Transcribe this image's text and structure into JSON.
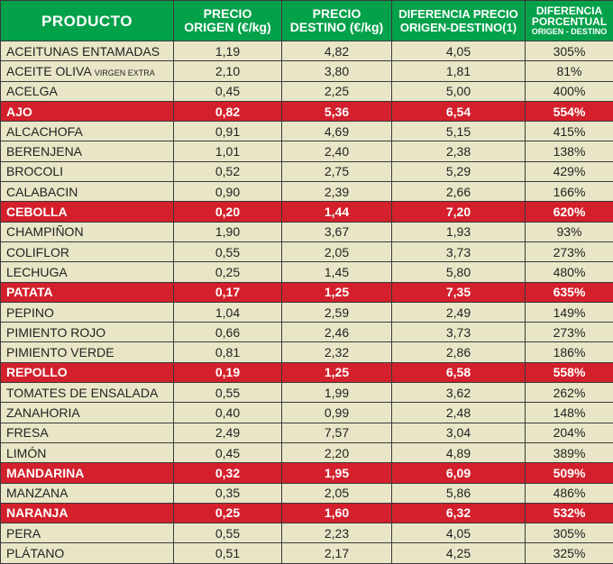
{
  "header": {
    "producto": "PRODUCTO",
    "precio_origen": [
      "PRECIO",
      "ORIGEN (€/kg)"
    ],
    "precio_destino": [
      "PRECIO",
      "DESTINO (€/kg)"
    ],
    "diferencia": [
      "DIFERENCIA PRECIO",
      "ORIGEN-DESTINO(1)"
    ],
    "porcentual": [
      "DIFERENCIA",
      "PORCENTUAL",
      "ORIGEN - DESTINO"
    ]
  },
  "colors": {
    "header_green": "#04a14b",
    "highlight_red": "#d3202c",
    "row_bg": "#e9e6c7"
  },
  "rows": [
    {
      "name": "ACEITUNAS ENTAMADAS",
      "origen": "1,19",
      "destino": "4,82",
      "diferencia": "4,05",
      "porcentaje": "305%",
      "highlight": false
    },
    {
      "name": "ACEITE OLIVA",
      "name_suffix": "VIRGEN EXTRA",
      "origen": "2,10",
      "destino": "3,80",
      "diferencia": "1,81",
      "porcentaje": "81%",
      "highlight": false
    },
    {
      "name": "ACELGA",
      "origen": "0,45",
      "destino": "2,25",
      "diferencia": "5,00",
      "porcentaje": "400%",
      "highlight": false
    },
    {
      "name": "AJO",
      "origen": "0,82",
      "destino": "5,36",
      "diferencia": "6,54",
      "porcentaje": "554%",
      "highlight": true
    },
    {
      "name": "ALCACHOFA",
      "origen": "0,91",
      "destino": "4,69",
      "diferencia": "5,15",
      "porcentaje": "415%",
      "highlight": false
    },
    {
      "name": "BERENJENA",
      "origen": "1,01",
      "destino": "2,40",
      "diferencia": "2,38",
      "porcentaje": "138%",
      "highlight": false
    },
    {
      "name": "BROCOLI",
      "origen": "0,52",
      "destino": "2,75",
      "diferencia": "5,29",
      "porcentaje": "429%",
      "highlight": false
    },
    {
      "name": "CALABACIN",
      "origen": "0,90",
      "destino": "2,39",
      "diferencia": "2,66",
      "porcentaje": "166%",
      "highlight": false
    },
    {
      "name": "CEBOLLA",
      "origen": "0,20",
      "destino": "1,44",
      "diferencia": "7,20",
      "porcentaje": "620%",
      "highlight": true
    },
    {
      "name": "CHAMPIÑON",
      "origen": "1,90",
      "destino": "3,67",
      "diferencia": "1,93",
      "porcentaje": "93%",
      "highlight": false
    },
    {
      "name": "COLIFLOR",
      "origen": "0,55",
      "destino": "2,05",
      "diferencia": "3,73",
      "porcentaje": "273%",
      "highlight": false
    },
    {
      "name": "LECHUGA",
      "origen": "0,25",
      "destino": "1,45",
      "diferencia": "5,80",
      "porcentaje": "480%",
      "highlight": false
    },
    {
      "name": "PATATA",
      "origen": "0,17",
      "destino": "1,25",
      "diferencia": "7,35",
      "porcentaje": "635%",
      "highlight": true
    },
    {
      "name": "PEPINO",
      "origen": "1,04",
      "destino": "2,59",
      "diferencia": "2,49",
      "porcentaje": "149%",
      "highlight": false
    },
    {
      "name": "PIMIENTO ROJO",
      "origen": "0,66",
      "destino": "2,46",
      "diferencia": "3,73",
      "porcentaje": "273%",
      "highlight": false
    },
    {
      "name": "PIMIENTO VERDE",
      "origen": "0,81",
      "destino": "2,32",
      "diferencia": "2,86",
      "porcentaje": "186%",
      "highlight": false
    },
    {
      "name": "REPOLLO",
      "origen": "0,19",
      "destino": "1,25",
      "diferencia": "6,58",
      "porcentaje": "558%",
      "highlight": true
    },
    {
      "name": "TOMATES DE ENSALADA",
      "origen": "0,55",
      "destino": "1,99",
      "diferencia": "3,62",
      "porcentaje": "262%",
      "highlight": false
    },
    {
      "name": "ZANAHORIA",
      "origen": "0,40",
      "destino": "0,99",
      "diferencia": "2,48",
      "porcentaje": "148%",
      "highlight": false
    },
    {
      "name": "FRESA",
      "origen": "2,49",
      "destino": "7,57",
      "diferencia": "3,04",
      "porcentaje": "204%",
      "highlight": false
    },
    {
      "name": "LIMÓN",
      "origen": "0,45",
      "destino": "2,20",
      "diferencia": "4,89",
      "porcentaje": "389%",
      "highlight": false
    },
    {
      "name": "MANDARINA",
      "origen": "0,32",
      "destino": "1,95",
      "diferencia": "6,09",
      "porcentaje": "509%",
      "highlight": true
    },
    {
      "name": "MANZANA",
      "origen": "0,35",
      "destino": "2,05",
      "diferencia": "5,86",
      "porcentaje": "486%",
      "highlight": false
    },
    {
      "name": "NARANJA",
      "origen": "0,25",
      "destino": "1,60",
      "diferencia": "6,32",
      "porcentaje": "532%",
      "highlight": true
    },
    {
      "name": "PERA",
      "origen": "0,55",
      "destino": "2,23",
      "diferencia": "4,05",
      "porcentaje": "305%",
      "highlight": false
    },
    {
      "name": "PLÁTANO",
      "origen": "0,51",
      "destino": "2,17",
      "diferencia": "4,25",
      "porcentaje": "325%",
      "highlight": false
    }
  ]
}
